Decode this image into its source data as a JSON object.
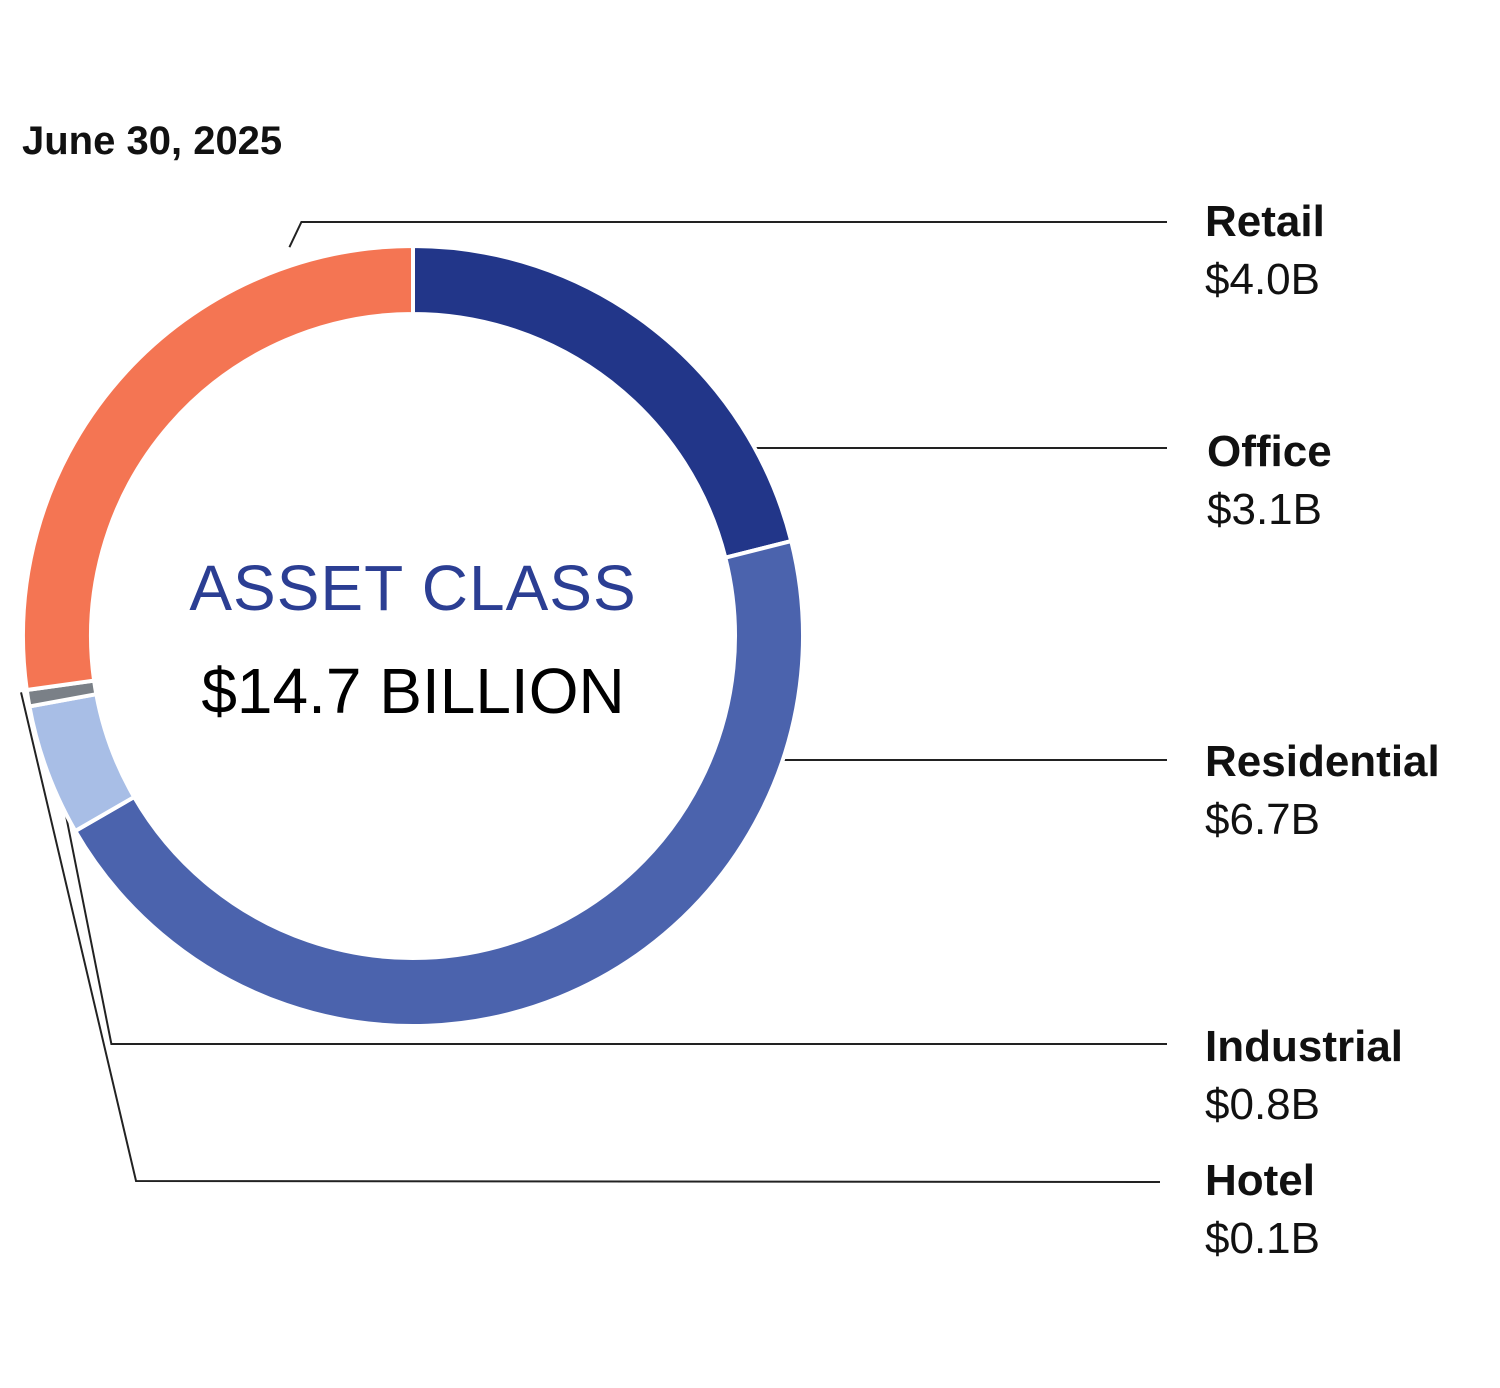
{
  "chart_data": {
    "type": "pie",
    "subtitle": "June 30, 2025",
    "center_title": "ASSET CLASS",
    "center_total": "$14.7 BILLION",
    "total": 14.7,
    "unit": "$B",
    "legend_placement": "right",
    "slices": [
      {
        "name": "Retail",
        "value": 4.0,
        "label": "$4.0B",
        "color": "#F47553"
      },
      {
        "name": "Office",
        "value": 3.1,
        "label": "$3.1B",
        "color": "#223689"
      },
      {
        "name": "Residential",
        "value": 6.7,
        "label": "$6.7B",
        "color": "#4B63AD"
      },
      {
        "name": "Industrial",
        "value": 0.8,
        "label": "$0.8B",
        "color": "#A8BEE6"
      },
      {
        "name": "Hotel",
        "value": 0.1,
        "label": "$0.1B",
        "color": "#7A8087"
      }
    ]
  },
  "colors": {
    "center_title": "#2B3E93",
    "text": "#111111",
    "leader_lines": "#222222"
  }
}
